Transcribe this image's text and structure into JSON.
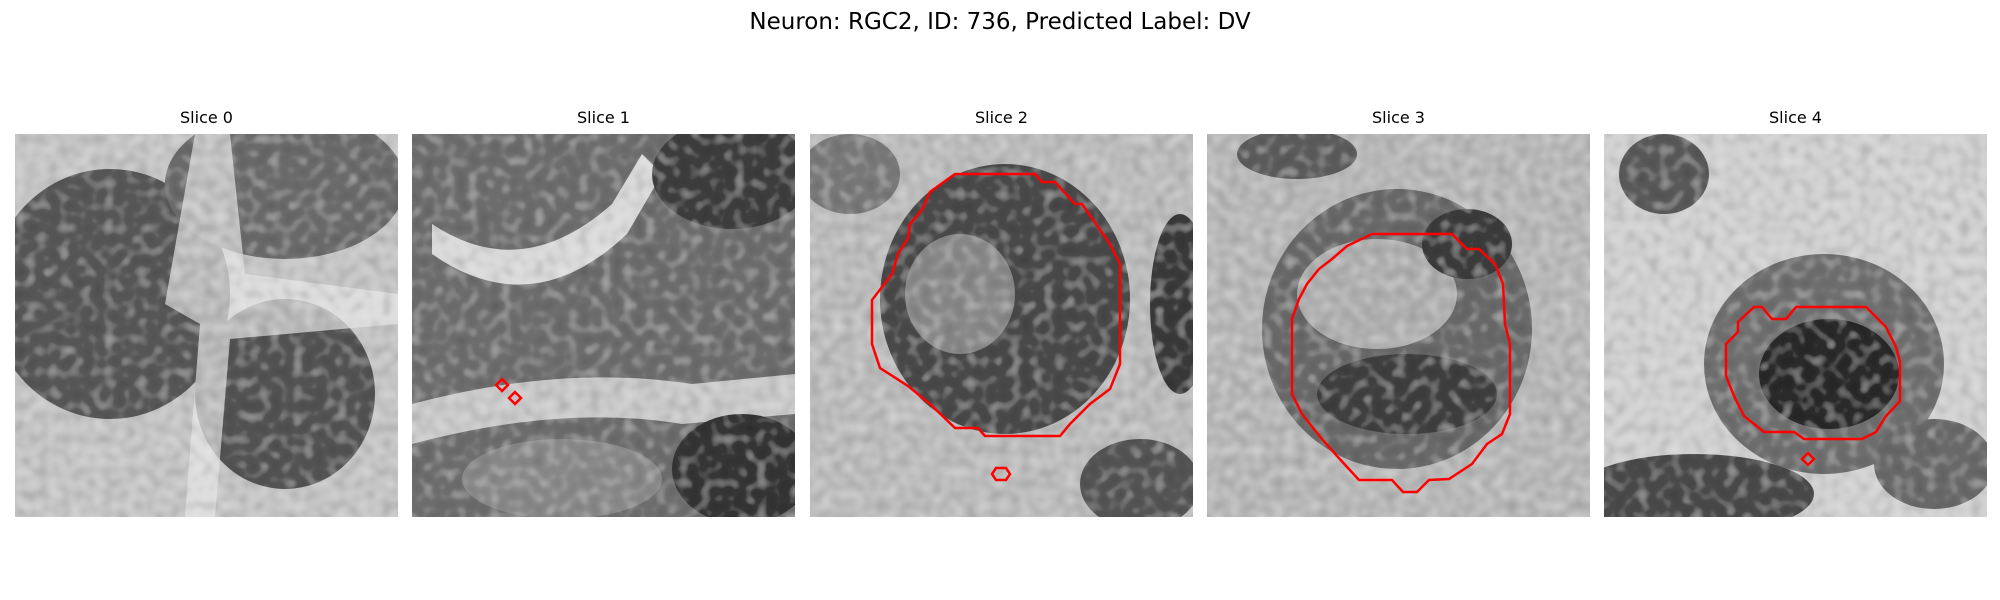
{
  "figure": {
    "title": "Neuron: RGC2, ID: 736, Predicted Label: DV"
  },
  "colors": {
    "contour": "#ff0000",
    "background": "#ffffff"
  },
  "slices": [
    {
      "title": "Slice 0",
      "has_contour": false
    },
    {
      "title": "Slice 1",
      "has_contour": true
    },
    {
      "title": "Slice 2",
      "has_contour": true
    },
    {
      "title": "Slice 3",
      "has_contour": true
    },
    {
      "title": "Slice 4",
      "has_contour": true
    }
  ]
}
